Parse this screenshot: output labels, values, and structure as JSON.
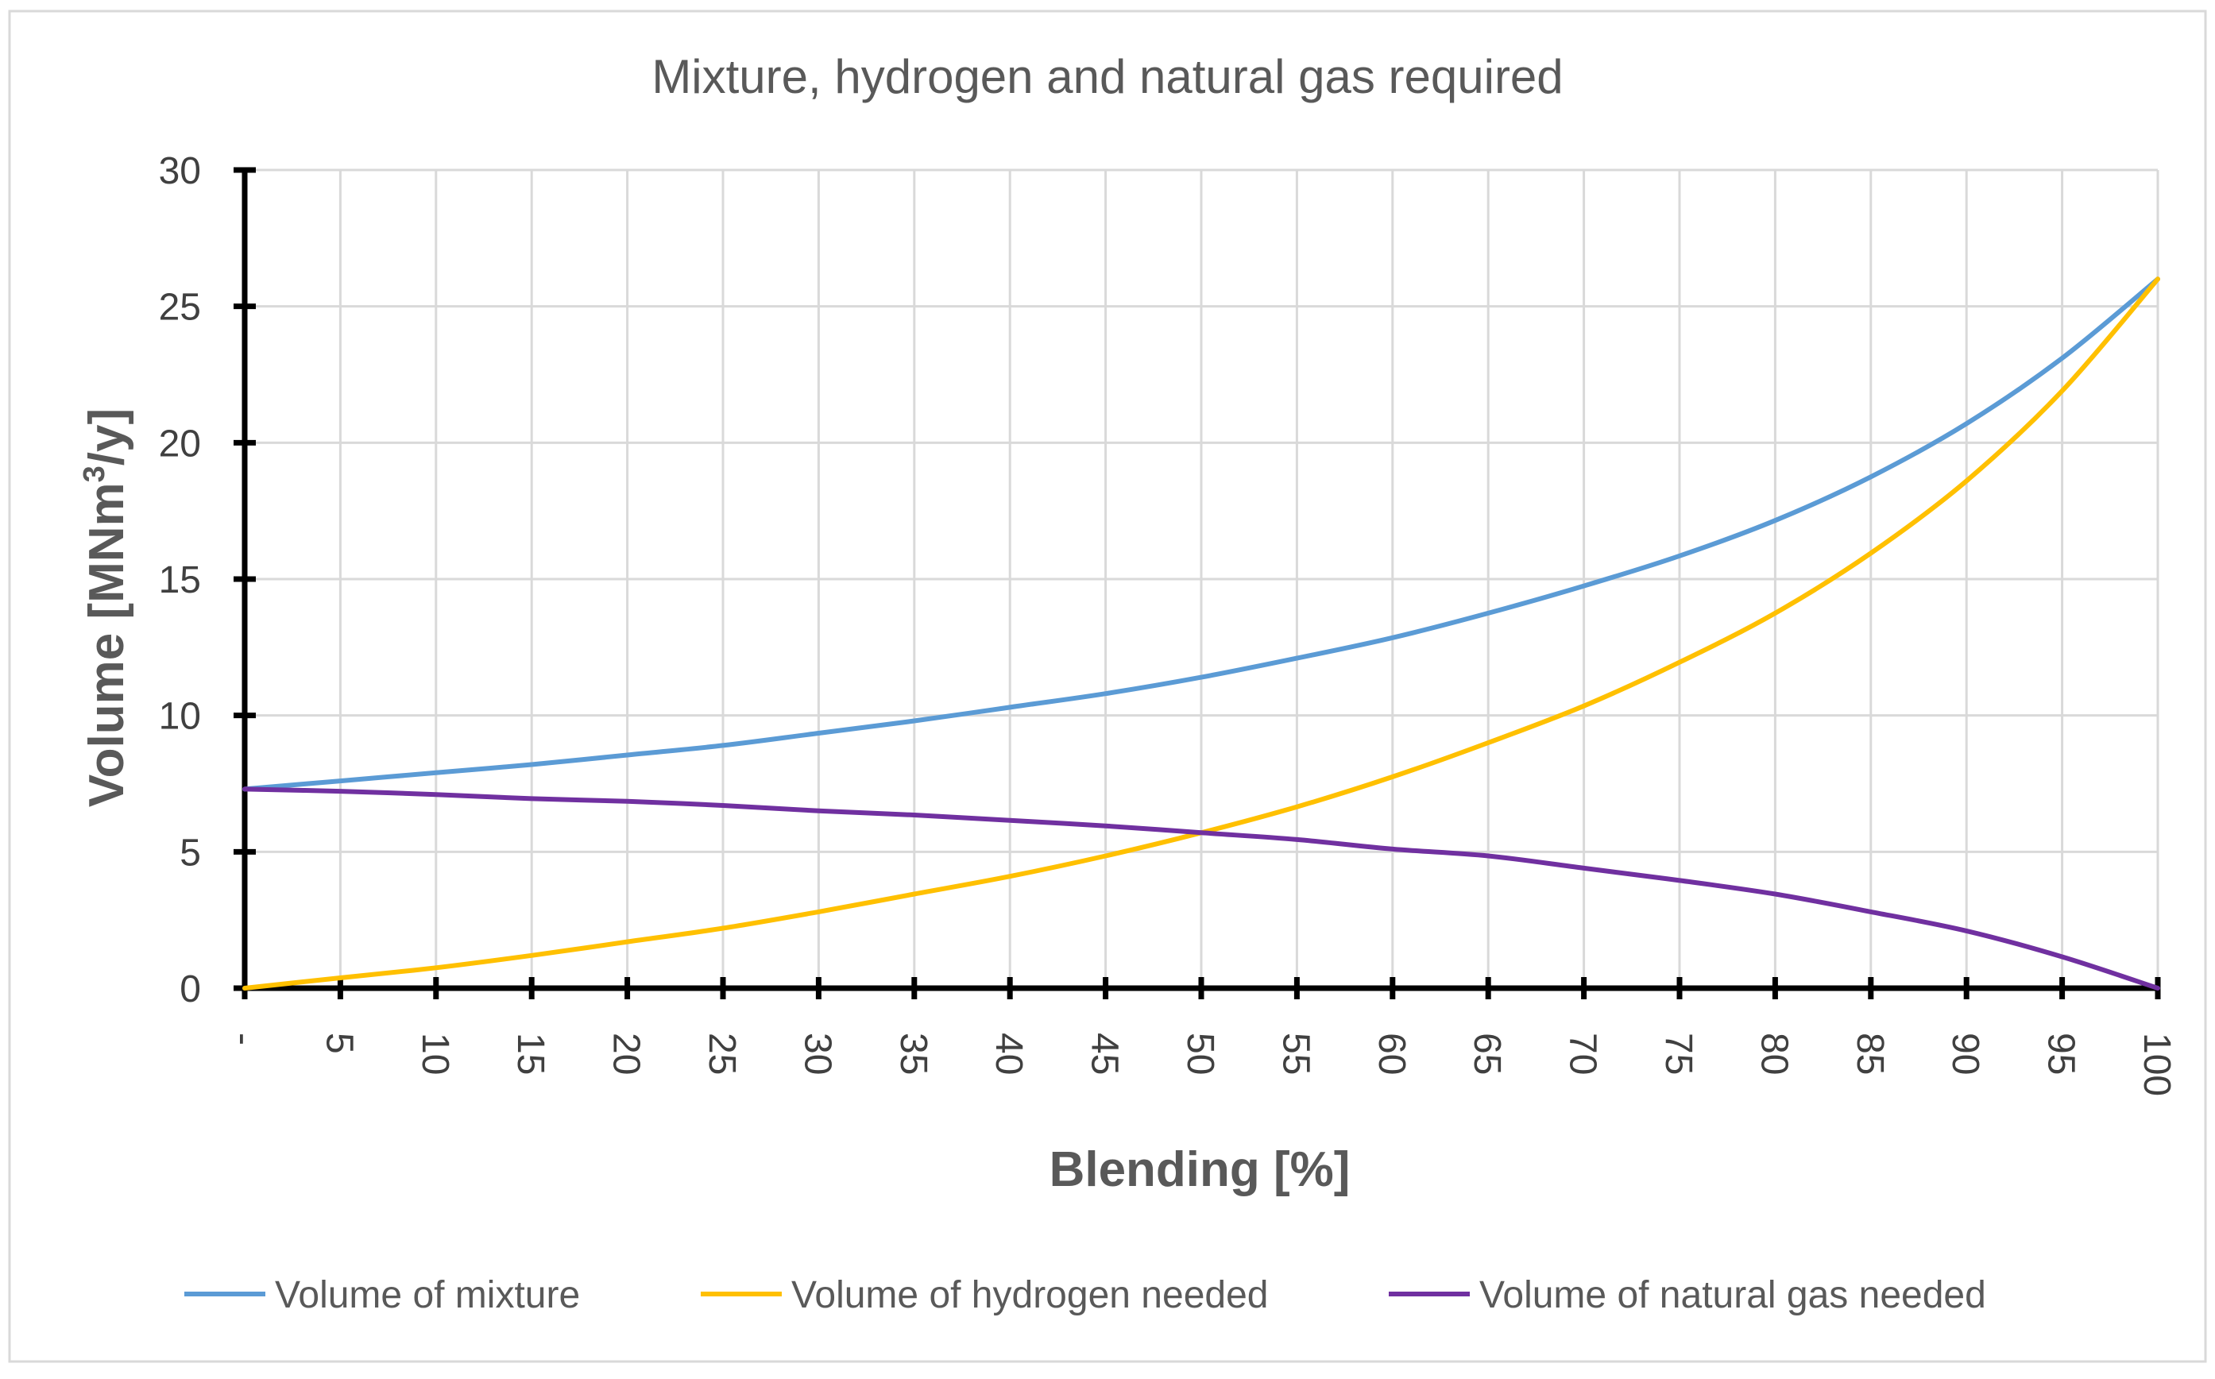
{
  "chart_data": {
    "type": "line",
    "title": "Mixture, hydrogen and natural gas required",
    "xlabel": "Blending [%]",
    "ylabel_main": "Volume  [MNm",
    "ylabel_sup": "3",
    "ylabel_end": "/y]",
    "ylim": [
      0,
      30
    ],
    "yticks": [
      0,
      5,
      10,
      15,
      20,
      25,
      30
    ],
    "ytick_labels": [
      "0",
      "5",
      "10",
      "15",
      "20",
      "25",
      "30"
    ],
    "x": [
      0,
      5,
      10,
      15,
      20,
      25,
      30,
      35,
      40,
      45,
      50,
      55,
      60,
      65,
      70,
      75,
      80,
      85,
      90,
      95,
      100
    ],
    "xtick_labels": [
      "-",
      "5",
      "10",
      "15",
      "20",
      "25",
      "30",
      "35",
      "40",
      "45",
      "50",
      "55",
      "60",
      "65",
      "70",
      "75",
      "80",
      "85",
      "90",
      "95",
      "100"
    ],
    "grid": true,
    "legend_position": "bottom",
    "series": [
      {
        "name": "Volume of  mixture",
        "color": "#5b9bd5",
        "values": [
          7.3,
          7.6,
          7.9,
          8.2,
          8.55,
          8.9,
          9.35,
          9.8,
          10.3,
          10.8,
          11.4,
          12.1,
          12.85,
          13.75,
          14.75,
          15.85,
          17.15,
          18.75,
          20.7,
          23.1,
          26.0
        ]
      },
      {
        "name": "Volume of hydrogen needed",
        "color": "#ffc000",
        "values": [
          0,
          0.38,
          0.75,
          1.2,
          1.7,
          2.2,
          2.8,
          3.45,
          4.1,
          4.85,
          5.7,
          6.65,
          7.75,
          9.0,
          10.35,
          11.95,
          13.75,
          15.95,
          18.6,
          21.9,
          26.0
        ]
      },
      {
        "name": "Volume of natural gas needed",
        "color": "#7030a0",
        "values": [
          7.3,
          7.22,
          7.1,
          6.95,
          6.85,
          6.7,
          6.5,
          6.35,
          6.15,
          5.95,
          5.7,
          5.45,
          5.1,
          4.85,
          4.4,
          3.95,
          3.45,
          2.8,
          2.1,
          1.15,
          0
        ]
      }
    ]
  }
}
